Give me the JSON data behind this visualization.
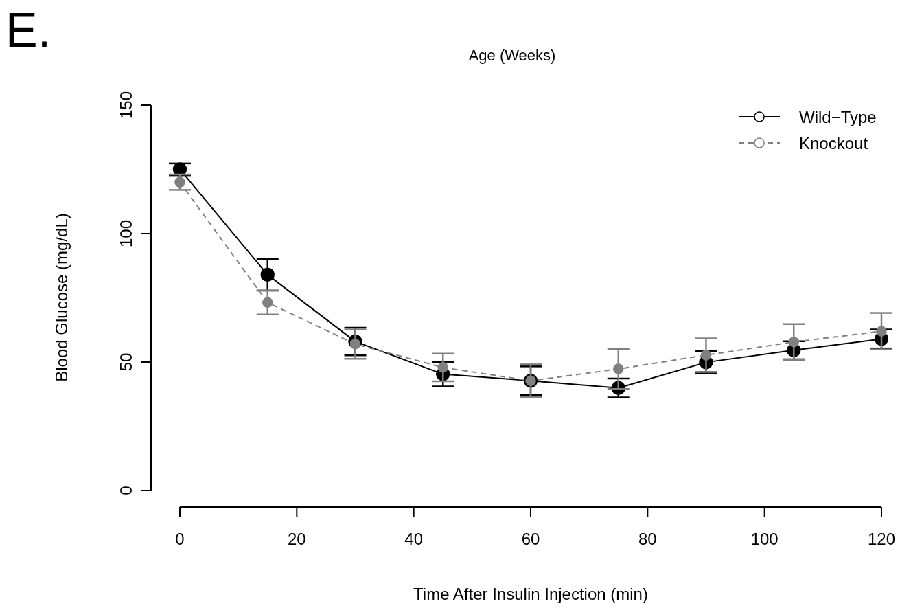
{
  "chart_data": {
    "type": "line",
    "title": "Age (Weeks)",
    "xlabel": "Time After Insulin Injection (min)",
    "ylabel": "Blood Glucose (mg/dL)",
    "annotations": [
      "E."
    ],
    "x": [
      0,
      15,
      30,
      45,
      60,
      75,
      90,
      105,
      120
    ],
    "series": [
      {
        "name": "Wild−Type",
        "color": "#000000",
        "line_style": "solid",
        "values": [
          125,
          84,
          58,
          45.3,
          42.7,
          39.9,
          49.9,
          54.6,
          59
        ],
        "errors": [
          2.3,
          6.2,
          5.4,
          4.8,
          5.6,
          3.7,
          4.3,
          3.5,
          3.7
        ]
      },
      {
        "name": "Knockout",
        "color": "#808080",
        "line_style": "dashed",
        "values": [
          120,
          73.2,
          57,
          47.9,
          42.7,
          47.3,
          52.7,
          57.8,
          62
        ],
        "errors": [
          3,
          4.7,
          5.7,
          5.4,
          6.4,
          7.8,
          6.5,
          7,
          7.1
        ]
      }
    ],
    "xlim": [
      0,
      120
    ],
    "xticks": [
      0,
      20,
      40,
      60,
      80,
      100,
      120
    ],
    "ylim": [
      0,
      150
    ],
    "yticks": [
      0,
      50,
      100,
      150
    ],
    "marker": "circle",
    "legend": "top right",
    "grid": false
  }
}
